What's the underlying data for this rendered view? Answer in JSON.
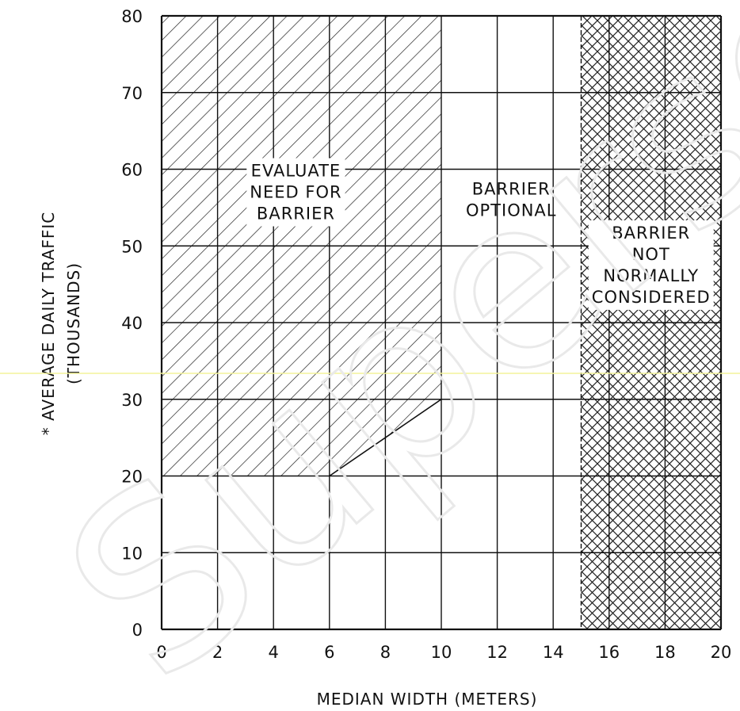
{
  "chart_data": {
    "type": "area",
    "xlabel": "MEDIAN WIDTH (METERS)",
    "ylabel_lines": [
      "* AVERAGE DAILY TRAFFIC",
      "(THOUSANDS)"
    ],
    "xlim": [
      0,
      20
    ],
    "ylim": [
      0,
      80
    ],
    "x_ticks": [
      0,
      2,
      4,
      6,
      8,
      10,
      12,
      14,
      16,
      18,
      20
    ],
    "y_ticks": [
      0,
      10,
      20,
      30,
      40,
      50,
      60,
      70,
      80
    ],
    "x_grid": [
      0,
      2,
      4,
      6,
      8,
      10,
      12,
      14,
      15,
      16,
      18,
      20
    ],
    "y_grid": [
      0,
      10,
      20,
      30,
      40,
      50,
      60,
      70,
      80
    ],
    "grid": true,
    "regions": [
      {
        "name": "evaluate",
        "label_lines": [
          "EVALUATE",
          "NEED FOR",
          "BARRIER"
        ],
        "pattern": "diagonal-hatch",
        "boundary": [
          [
            0,
            20
          ],
          [
            6,
            20
          ],
          [
            10,
            30
          ],
          [
            10,
            80
          ],
          [
            0,
            80
          ]
        ],
        "label_at": [
          4.8,
          57
        ]
      },
      {
        "name": "optional",
        "label_lines": [
          "BARRIER",
          "OPTIONAL"
        ],
        "pattern": "none",
        "label_at": [
          12.5,
          56
        ]
      },
      {
        "name": "not-considered",
        "label_lines": [
          "BARRIER",
          "NOT",
          "NORMALLY",
          "CONSIDERED"
        ],
        "pattern": "cross-hatch",
        "boundary": [
          [
            15,
            0
          ],
          [
            20,
            0
          ],
          [
            20,
            80
          ],
          [
            15,
            80
          ]
        ],
        "label_at": [
          17.5,
          47.5
        ]
      }
    ]
  },
  "watermark": {
    "text": "Superseded"
  }
}
